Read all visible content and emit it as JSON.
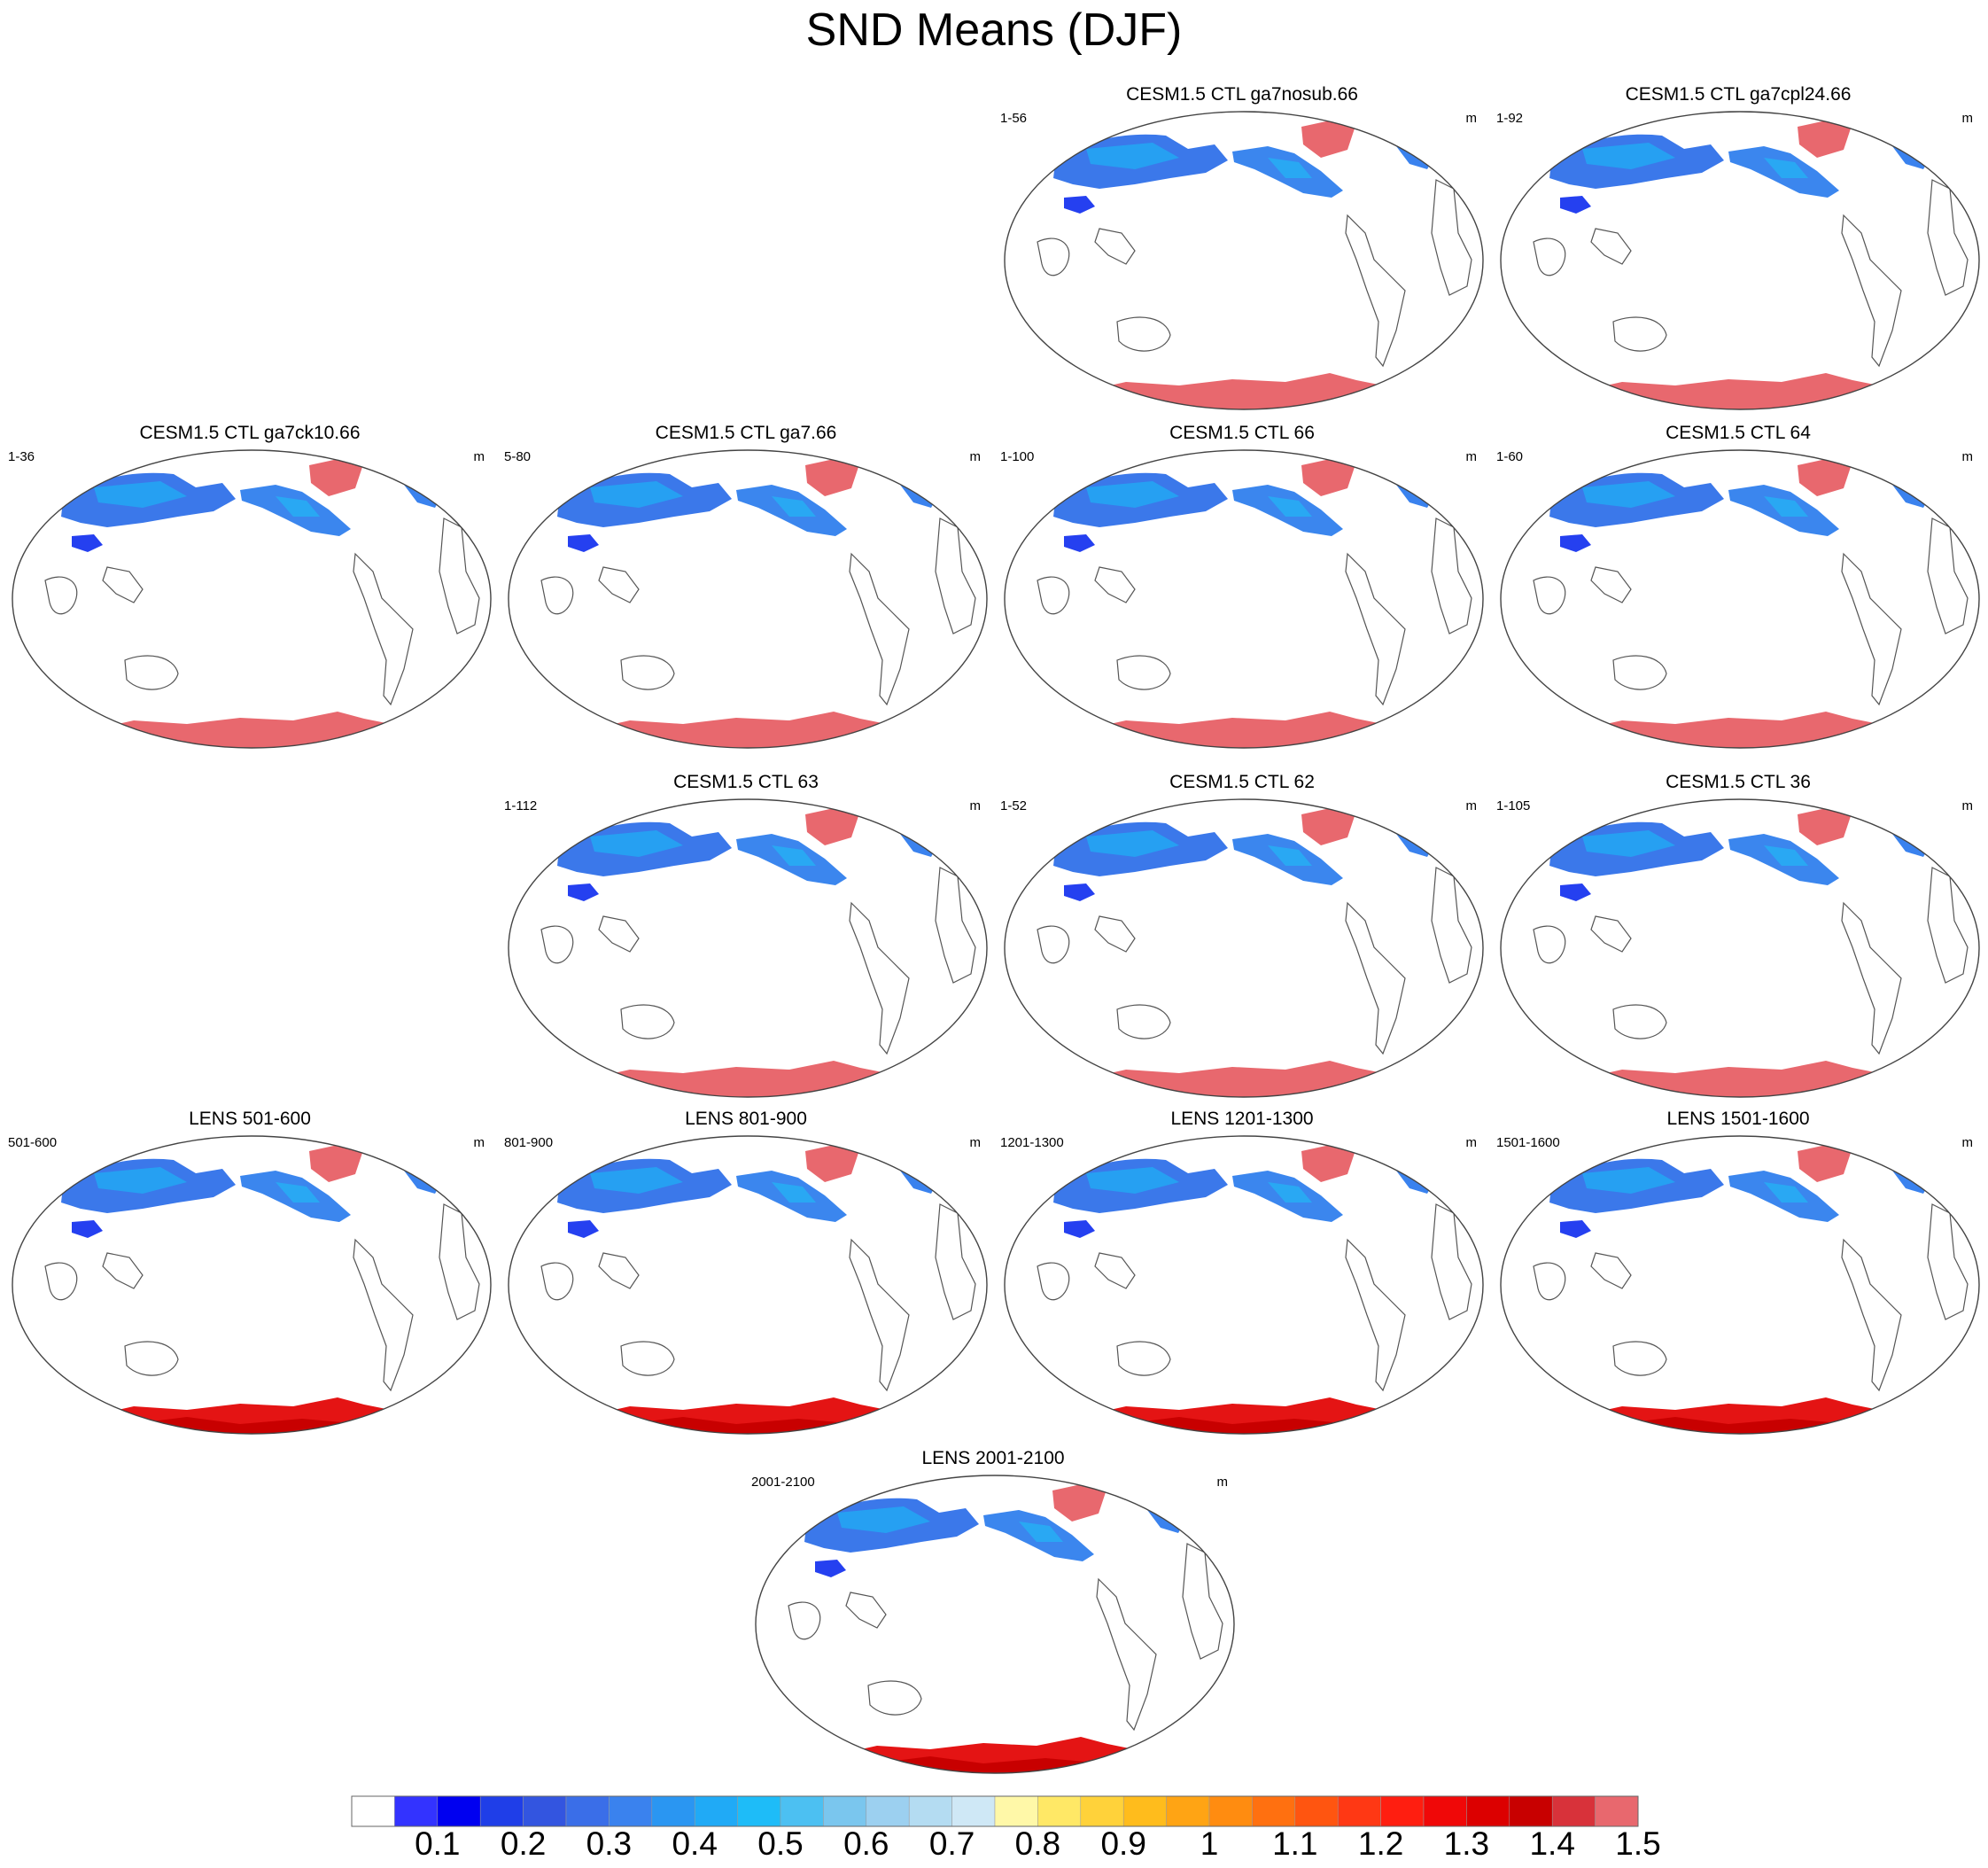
{
  "title": "SND Means (DJF)",
  "panels": [
    {
      "title": "CESM1.5 CTL ga7nosub.66",
      "range": "1-56",
      "units": "m",
      "antarctic_ice": "pink"
    },
    {
      "title": "CESM1.5 CTL ga7cpl24.66",
      "range": "1-92",
      "units": "m",
      "antarctic_ice": "pink"
    },
    {
      "title": "CESM1.5 CTL ga7ck10.66",
      "range": "1-36",
      "units": "m",
      "antarctic_ice": "pink"
    },
    {
      "title": "CESM1.5 CTL ga7.66",
      "range": "5-80",
      "units": "m",
      "antarctic_ice": "pink"
    },
    {
      "title": "CESM1.5 CTL 66",
      "range": "1-100",
      "units": "m",
      "antarctic_ice": "pink"
    },
    {
      "title": "CESM1.5 CTL 64",
      "range": "1-60",
      "units": "m",
      "antarctic_ice": "pink"
    },
    {
      "title": "CESM1.5 CTL 63",
      "range": "1-112",
      "units": "m",
      "antarctic_ice": "pink"
    },
    {
      "title": "CESM1.5 CTL 62",
      "range": "1-52",
      "units": "m",
      "antarctic_ice": "pink"
    },
    {
      "title": "CESM1.5 CTL 36",
      "range": "1-105",
      "units": "m",
      "antarctic_ice": "pink"
    },
    {
      "title": "LENS 501-600",
      "range": "501-600",
      "units": "m",
      "antarctic_ice": "red"
    },
    {
      "title": "LENS 801-900",
      "range": "801-900",
      "units": "m",
      "antarctic_ice": "red"
    },
    {
      "title": "LENS 1201-1300",
      "range": "1201-1300",
      "units": "m",
      "antarctic_ice": "red"
    },
    {
      "title": "LENS 1501-1600",
      "range": "1501-1600",
      "units": "m",
      "antarctic_ice": "red"
    },
    {
      "title": "LENS 2001-2100",
      "range": "2001-2100",
      "units": "m",
      "antarctic_ice": "red"
    }
  ],
  "colorbar": {
    "colors": [
      "#ffffff",
      "#3333ff",
      "#0000f0",
      "#1f3ee8",
      "#3355e0",
      "#3a6ee8",
      "#3a82ee",
      "#2a96f2",
      "#20aaf6",
      "#1ebcf8",
      "#4cc0f2",
      "#7ac6ee",
      "#9cd0f0",
      "#b4dcf2",
      "#cfe8f6",
      "#fff8a8",
      "#ffe866",
      "#ffd23a",
      "#ffbc1c",
      "#ffa414",
      "#ff8c10",
      "#ff7010",
      "#ff5510",
      "#ff3814",
      "#ff1e10",
      "#f00808",
      "#dc0000",
      "#c80000",
      "#d8323a",
      "#e8686e"
    ],
    "labels": [
      "0.1",
      "0.2",
      "0.3",
      "0.4",
      "0.5",
      "0.6",
      "0.7",
      "0.8",
      "0.9",
      "1",
      "1.1",
      "1.2",
      "1.3",
      "1.4",
      "1.5"
    ]
  }
}
